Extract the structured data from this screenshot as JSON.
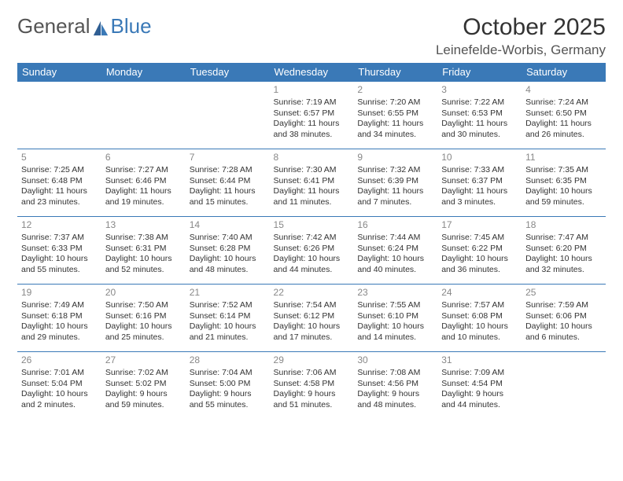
{
  "logo": {
    "text1": "General",
    "text2": "Blue"
  },
  "title": "October 2025",
  "location": "Leinefelde-Worbis, Germany",
  "colors": {
    "header_bg": "#3a79b7",
    "header_fg": "#ffffff",
    "row_border": "#3a79b7",
    "daynum": "#888888",
    "text": "#333333",
    "background": "#ffffff"
  },
  "day_headers": [
    "Sunday",
    "Monday",
    "Tuesday",
    "Wednesday",
    "Thursday",
    "Friday",
    "Saturday"
  ],
  "weeks": [
    [
      null,
      null,
      null,
      {
        "d": "1",
        "sunrise": "7:19 AM",
        "sunset": "6:57 PM",
        "daylight": "11 hours and 38 minutes."
      },
      {
        "d": "2",
        "sunrise": "7:20 AM",
        "sunset": "6:55 PM",
        "daylight": "11 hours and 34 minutes."
      },
      {
        "d": "3",
        "sunrise": "7:22 AM",
        "sunset": "6:53 PM",
        "daylight": "11 hours and 30 minutes."
      },
      {
        "d": "4",
        "sunrise": "7:24 AM",
        "sunset": "6:50 PM",
        "daylight": "11 hours and 26 minutes."
      }
    ],
    [
      {
        "d": "5",
        "sunrise": "7:25 AM",
        "sunset": "6:48 PM",
        "daylight": "11 hours and 23 minutes."
      },
      {
        "d": "6",
        "sunrise": "7:27 AM",
        "sunset": "6:46 PM",
        "daylight": "11 hours and 19 minutes."
      },
      {
        "d": "7",
        "sunrise": "7:28 AM",
        "sunset": "6:44 PM",
        "daylight": "11 hours and 15 minutes."
      },
      {
        "d": "8",
        "sunrise": "7:30 AM",
        "sunset": "6:41 PM",
        "daylight": "11 hours and 11 minutes."
      },
      {
        "d": "9",
        "sunrise": "7:32 AM",
        "sunset": "6:39 PM",
        "daylight": "11 hours and 7 minutes."
      },
      {
        "d": "10",
        "sunrise": "7:33 AM",
        "sunset": "6:37 PM",
        "daylight": "11 hours and 3 minutes."
      },
      {
        "d": "11",
        "sunrise": "7:35 AM",
        "sunset": "6:35 PM",
        "daylight": "10 hours and 59 minutes."
      }
    ],
    [
      {
        "d": "12",
        "sunrise": "7:37 AM",
        "sunset": "6:33 PM",
        "daylight": "10 hours and 55 minutes."
      },
      {
        "d": "13",
        "sunrise": "7:38 AM",
        "sunset": "6:31 PM",
        "daylight": "10 hours and 52 minutes."
      },
      {
        "d": "14",
        "sunrise": "7:40 AM",
        "sunset": "6:28 PM",
        "daylight": "10 hours and 48 minutes."
      },
      {
        "d": "15",
        "sunrise": "7:42 AM",
        "sunset": "6:26 PM",
        "daylight": "10 hours and 44 minutes."
      },
      {
        "d": "16",
        "sunrise": "7:44 AM",
        "sunset": "6:24 PM",
        "daylight": "10 hours and 40 minutes."
      },
      {
        "d": "17",
        "sunrise": "7:45 AM",
        "sunset": "6:22 PM",
        "daylight": "10 hours and 36 minutes."
      },
      {
        "d": "18",
        "sunrise": "7:47 AM",
        "sunset": "6:20 PM",
        "daylight": "10 hours and 32 minutes."
      }
    ],
    [
      {
        "d": "19",
        "sunrise": "7:49 AM",
        "sunset": "6:18 PM",
        "daylight": "10 hours and 29 minutes."
      },
      {
        "d": "20",
        "sunrise": "7:50 AM",
        "sunset": "6:16 PM",
        "daylight": "10 hours and 25 minutes."
      },
      {
        "d": "21",
        "sunrise": "7:52 AM",
        "sunset": "6:14 PM",
        "daylight": "10 hours and 21 minutes."
      },
      {
        "d": "22",
        "sunrise": "7:54 AM",
        "sunset": "6:12 PM",
        "daylight": "10 hours and 17 minutes."
      },
      {
        "d": "23",
        "sunrise": "7:55 AM",
        "sunset": "6:10 PM",
        "daylight": "10 hours and 14 minutes."
      },
      {
        "d": "24",
        "sunrise": "7:57 AM",
        "sunset": "6:08 PM",
        "daylight": "10 hours and 10 minutes."
      },
      {
        "d": "25",
        "sunrise": "7:59 AM",
        "sunset": "6:06 PM",
        "daylight": "10 hours and 6 minutes."
      }
    ],
    [
      {
        "d": "26",
        "sunrise": "7:01 AM",
        "sunset": "5:04 PM",
        "daylight": "10 hours and 2 minutes."
      },
      {
        "d": "27",
        "sunrise": "7:02 AM",
        "sunset": "5:02 PM",
        "daylight": "9 hours and 59 minutes."
      },
      {
        "d": "28",
        "sunrise": "7:04 AM",
        "sunset": "5:00 PM",
        "daylight": "9 hours and 55 minutes."
      },
      {
        "d": "29",
        "sunrise": "7:06 AM",
        "sunset": "4:58 PM",
        "daylight": "9 hours and 51 minutes."
      },
      {
        "d": "30",
        "sunrise": "7:08 AM",
        "sunset": "4:56 PM",
        "daylight": "9 hours and 48 minutes."
      },
      {
        "d": "31",
        "sunrise": "7:09 AM",
        "sunset": "4:54 PM",
        "daylight": "9 hours and 44 minutes."
      },
      null
    ]
  ],
  "labels": {
    "sunrise": "Sunrise: ",
    "sunset": "Sunset: ",
    "daylight": "Daylight: "
  }
}
